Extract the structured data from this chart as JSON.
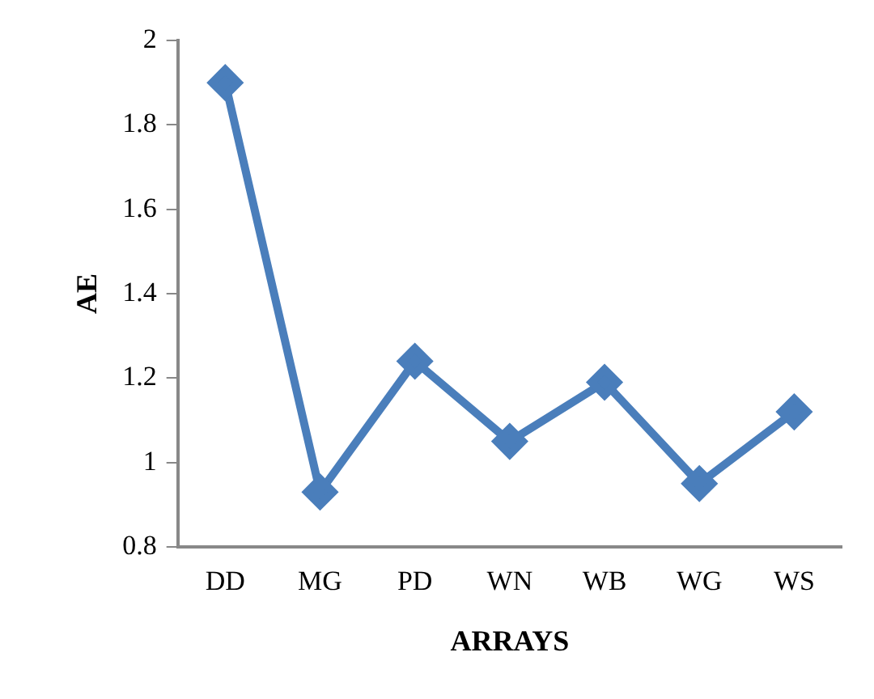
{
  "chart_data": {
    "type": "line",
    "xlabel": "ARRAYS",
    "ylabel": "AE",
    "categories": [
      "DD",
      "MG",
      "PD",
      "WN",
      "WB",
      "WG",
      "WS"
    ],
    "series": [
      {
        "color": "#4a7ebb",
        "values": [
          1.9,
          0.93,
          1.24,
          1.05,
          1.19,
          0.95,
          1.12
        ]
      }
    ],
    "ylim": [
      0.8,
      2
    ],
    "yticks": [
      0.8,
      1,
      1.2,
      1.4,
      1.6,
      1.8,
      2
    ],
    "grid": false,
    "legend": false,
    "marker": "diamond",
    "line_style": "solid"
  }
}
